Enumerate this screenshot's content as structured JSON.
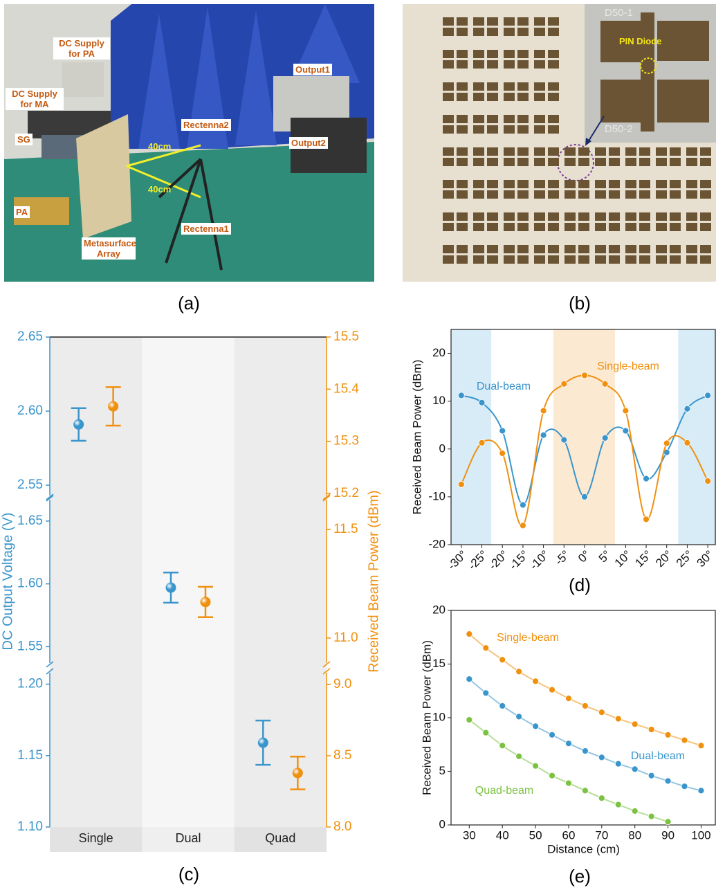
{
  "figure": {
    "panel_labels": [
      "(a)",
      "(b)",
      "(c)",
      "(d)",
      "(e)"
    ]
  },
  "photo_a": {
    "labels": [
      "DC Supply for PA",
      "DC Supply for MA",
      "SG",
      "PA",
      "Metasurface Array",
      "Rectenna2",
      "Rectenna1",
      "Output1",
      "Output2"
    ],
    "distances": [
      "40cm",
      "40cm"
    ]
  },
  "photo_b": {
    "labels": [
      "D50-1",
      "D50-2"
    ],
    "callout": "PIN Diode"
  },
  "chart_data": [
    {
      "type": "errorbar",
      "categories": [
        "Single",
        "Dual",
        "Quad"
      ],
      "y_label": "DC Output Voltage (V)",
      "y2_label": "Received Beam Power (dBm)",
      "ysegments": [
        {
          "ylim": [
            2.543,
            2.65
          ],
          "yticks": [
            2.55,
            {
              "value": 2.6,
              "label": "2.60"
            },
            2.65
          ]
        },
        {
          "ylim": [
            1.537,
            1.667
          ],
          "yticks": [
            1.55,
            {
              "value": 1.6,
              "label": "1.60"
            },
            1.65
          ]
        },
        {
          "ylim": [
            1.1,
            1.208
          ],
          "yticks": [
            {
              "value": 1.1,
              "label": "1.10"
            },
            1.15,
            {
              "value": 1.2,
              "label": "1.20"
            }
          ]
        }
      ],
      "y2segments": [
        {
          "ylim": [
            15.196,
            15.5
          ],
          "yticks": [
            15.2,
            15.3,
            15.4,
            15.5
          ]
        },
        {
          "ylim": [
            10.885,
            11.637
          ],
          "yticks": [
            {
              "value": 11,
              "label": "11.0"
            },
            11.5
          ]
        },
        {
          "ylim": [
            8,
            9.083
          ],
          "yticks": [
            {
              "value": 8,
              "label": "8.0"
            },
            8.5,
            {
              "value": 9,
              "label": "9.0"
            }
          ]
        }
      ],
      "series": [
        {
          "color": "#3a95cc",
          "values": [
            2.591,
            1.597,
            1.159
          ],
          "errors": [
            0.011,
            0.012,
            0.0155
          ]
        },
        {
          "color": "#f0900f",
          "axis": "y2",
          "values": [
            15.367,
            11.166,
            8.379
          ],
          "errors": [
            0.037,
            0.07,
            0.115
          ]
        }
      ]
    },
    {
      "type": "line",
      "y_label": "Received Beam Power (dBm)",
      "x": [
        -30,
        -25,
        -20,
        -15,
        -10,
        -5,
        0,
        5,
        10,
        15,
        20,
        25,
        30
      ],
      "xlim": [
        -32.5,
        32
      ],
      "ylim": [
        -20,
        25
      ],
      "xticks": [
        {
          "value": -30,
          "label": "-30°"
        },
        {
          "value": -25,
          "label": "-25°"
        },
        {
          "value": -20,
          "label": "-20°"
        },
        {
          "value": -15,
          "label": "-15°"
        },
        {
          "value": -10,
          "label": "-10°"
        },
        {
          "value": -5,
          "label": "-5°"
        },
        {
          "value": 0,
          "label": "0°"
        },
        {
          "value": 5,
          "label": "5°"
        },
        {
          "value": 10,
          "label": "10°"
        },
        {
          "value": 15,
          "label": "15°"
        },
        {
          "value": 20,
          "label": "20°"
        },
        {
          "value": 25,
          "label": "25°"
        },
        {
          "value": 30,
          "label": "30°"
        }
      ],
      "yticks": [
        -20,
        -10,
        0,
        10,
        20
      ],
      "shaded_regions": [
        {
          "xlim": [
            -32.5,
            -22.7
          ],
          "color": "#d8ecf8"
        },
        {
          "xlim": [
            -7.6,
            7.4
          ],
          "color": "#fbe9d2"
        },
        {
          "xlim": [
            22.8,
            32
          ],
          "color": "#d8ecf8"
        }
      ],
      "series": [
        {
          "name": "Dual-beam",
          "color": "#3a95cc",
          "values": [
            11.2,
            9.7,
            3.8,
            -11.7,
            2.9,
            1.9,
            -10,
            2.3,
            3.8,
            -6.2,
            -0.7,
            8.4,
            11.2
          ]
        },
        {
          "name": "Single-beam",
          "color": "#f0900f",
          "values": [
            -7.4,
            1.3,
            -0.9,
            -16,
            8,
            13.6,
            15.4,
            13.6,
            8,
            -14.7,
            1.2,
            1.3,
            -6.7
          ]
        }
      ]
    },
    {
      "type": "line",
      "y_label": "Received Beam Power (dBm)",
      "x_label": "Distance (cm)",
      "x": [
        30,
        35,
        40,
        45,
        50,
        55,
        60,
        65,
        70,
        75,
        80,
        85,
        90,
        95,
        100
      ],
      "xlim": [
        24.5,
        104.5
      ],
      "ylim": [
        0,
        20
      ],
      "xticks": [
        30,
        40,
        50,
        60,
        70,
        80,
        90,
        100
      ],
      "yticks": [
        0,
        5,
        10,
        15,
        20
      ],
      "series": [
        {
          "name": "Single-beam",
          "color": "#f0900f",
          "values": [
            17.8,
            16.5,
            15.4,
            14.3,
            13.4,
            12.6,
            11.8,
            11.1,
            10.5,
            9.9,
            9.4,
            8.9,
            8.4,
            7.9,
            7.4
          ]
        },
        {
          "name": "Dual-beam",
          "color": "#3a95cc",
          "values": [
            13.6,
            12.3,
            11.1,
            10.1,
            9.2,
            8.4,
            7.6,
            6.9,
            6.3,
            5.7,
            5.2,
            4.6,
            4.1,
            3.6,
            3.2
          ]
        },
        {
          "name": "Quad-beam",
          "color": "#7cc242",
          "values": [
            9.8,
            8.6,
            7.4,
            6.4,
            5.5,
            4.6,
            3.9,
            3.2,
            2.5,
            1.9,
            1.3,
            0.8,
            0.3,
            null,
            null
          ]
        }
      ]
    }
  ]
}
